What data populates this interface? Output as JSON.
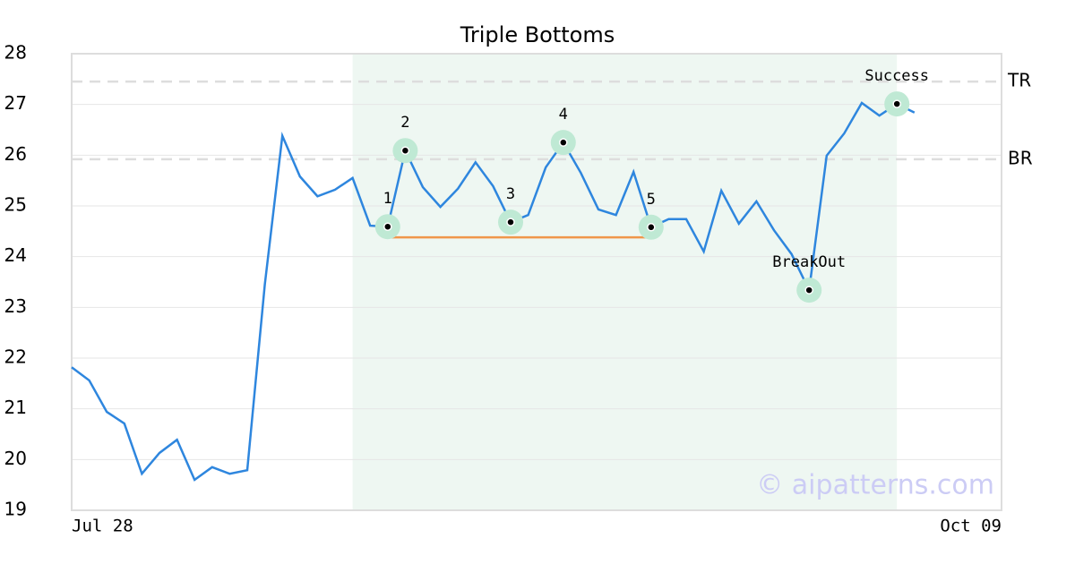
{
  "chart_data": {
    "type": "line",
    "title": "Triple Bottoms",
    "x_labels": [
      "Jul 28",
      "Oct 09"
    ],
    "series": [
      {
        "color": "#2e86de",
        "values": [
          21.82,
          21.56,
          20.94,
          20.71,
          19.72,
          20.13,
          20.39,
          19.6,
          19.85,
          19.72,
          19.79,
          23.45,
          26.38,
          25.58,
          25.19,
          25.32,
          25.55,
          24.61,
          24.59,
          26.09,
          25.37,
          24.98,
          25.34,
          25.86,
          25.39,
          24.68,
          24.82,
          25.76,
          26.25,
          25.65,
          24.93,
          24.82,
          25.67,
          24.58,
          24.74,
          24.74,
          24.1,
          25.3,
          24.65,
          25.09,
          24.52,
          24.05,
          23.34,
          25.99,
          26.43,
          27.03,
          26.78,
          27.01,
          26.84
        ]
      }
    ],
    "ylim": [
      19,
      28
    ],
    "yticks": [
      19,
      20,
      21,
      22,
      23,
      24,
      25,
      26,
      27,
      28
    ],
    "grid": true,
    "levels": [
      {
        "label": "TR",
        "value": 27.45
      },
      {
        "label": "BR",
        "value": 25.92
      }
    ],
    "support": 24.38,
    "highlight": [
      16,
      47
    ],
    "points": [
      {
        "index": 18,
        "label": "1"
      },
      {
        "index": 19,
        "label": "2"
      },
      {
        "index": 25,
        "label": "3"
      },
      {
        "index": 28,
        "label": "4"
      },
      {
        "index": 33,
        "label": "5"
      },
      {
        "index": 42,
        "label": "BreakOut"
      },
      {
        "index": 47,
        "label": "Success"
      }
    ],
    "watermark": "© aipatterns.com"
  }
}
